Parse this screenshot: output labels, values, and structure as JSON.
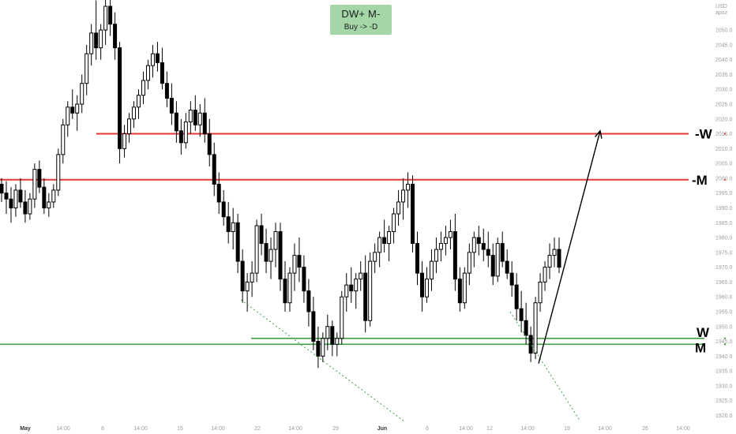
{
  "badge": {
    "title": "DW+ M-",
    "subtitle": "Buy -> -D",
    "color": "#a5d6a7"
  },
  "colors": {
    "candle": "#000000",
    "resistance": "#e53935",
    "support": "#43a047",
    "wick": "#000000",
    "axis_text": "#9e9e9e",
    "projection": "#000000"
  },
  "chart_data": {
    "type": "candlestick",
    "currency": "USD",
    "axis_unit": "apoz",
    "ylim": [
      1918,
      2058
    ],
    "y_ticks": [
      2050.0,
      2045.0,
      2040.0,
      2035.0,
      2030.0,
      2025.0,
      2020.0,
      2015.0,
      2010.0,
      2005.0,
      2000.0,
      1995.0,
      1990.0,
      1985.0,
      1980.0,
      1975.0,
      1970.0,
      1965.0,
      1960.0,
      1955.0,
      1950.0,
      1945.0,
      1940.0,
      1935.0,
      1930.0,
      1925.0,
      1920.0
    ],
    "x_ticks": [
      "May",
      "14:00",
      "8",
      "14:00",
      "15",
      "14:00",
      "22",
      "14:00",
      "29",
      "Jun",
      "6",
      "14:00",
      "12",
      "14:00",
      "19",
      "14:00",
      "26",
      "14:00"
    ],
    "levels": [
      {
        "label": "-W",
        "value": 2015.0,
        "kind": "resistance"
      },
      {
        "label": "-M",
        "value": 1999.5,
        "kind": "resistance"
      },
      {
        "label": "W",
        "value": 1946.0,
        "kind": "support"
      },
      {
        "label": "M",
        "value": 1944.0,
        "kind": "support"
      }
    ],
    "projection": {
      "from": 1937.5,
      "to": 2016.0
    },
    "grid": false,
    "series": [
      {
        "values": [
          [
            1998,
            2000,
            1992,
            1995
          ],
          [
            1995,
            1999,
            1988,
            1993
          ],
          [
            1993,
            1997,
            1985,
            1990
          ],
          [
            1990,
            1998,
            1987,
            1996
          ],
          [
            1996,
            2000,
            1990,
            1992
          ],
          [
            1992,
            1996,
            1985,
            1988
          ],
          [
            1988,
            1995,
            1986,
            1993
          ],
          [
            1993,
            2005,
            1990,
            2003
          ],
          [
            2003,
            2006,
            1995,
            1997
          ],
          [
            1997,
            2000,
            1988,
            1990
          ],
          [
            1990,
            1995,
            1987,
            1992
          ],
          [
            1992,
            1998,
            1990,
            1996
          ],
          [
            1996,
            2010,
            1994,
            2008
          ],
          [
            2008,
            2020,
            2005,
            2018
          ],
          [
            2018,
            2026,
            2014,
            2024
          ],
          [
            2024,
            2030,
            2020,
            2022
          ],
          [
            2022,
            2028,
            2016,
            2025
          ],
          [
            2025,
            2035,
            2022,
            2032
          ],
          [
            2032,
            2045,
            2028,
            2042
          ],
          [
            2042,
            2052,
            2038,
            2049
          ],
          [
            2049,
            2060,
            2040,
            2044
          ],
          [
            2044,
            2052,
            2040,
            2050
          ],
          [
            2050,
            2062,
            2045,
            2058
          ],
          [
            2058,
            2062,
            2048,
            2052
          ],
          [
            2052,
            2056,
            2040,
            2044
          ],
          [
            2044,
            2046,
            2005,
            2010
          ],
          [
            2010,
            2018,
            2007,
            2015
          ],
          [
            2015,
            2022,
            2012,
            2020
          ],
          [
            2020,
            2026,
            2017,
            2024
          ],
          [
            2024,
            2030,
            2020,
            2028
          ],
          [
            2028,
            2036,
            2025,
            2033
          ],
          [
            2033,
            2040,
            2030,
            2038
          ],
          [
            2038,
            2045,
            2034,
            2042
          ],
          [
            2042,
            2046,
            2036,
            2039
          ],
          [
            2039,
            2044,
            2030,
            2032
          ],
          [
            2032,
            2036,
            2024,
            2027
          ],
          [
            2027,
            2032,
            2018,
            2022
          ],
          [
            2022,
            2026,
            2012,
            2016
          ],
          [
            2016,
            2020,
            2008,
            2012
          ],
          [
            2012,
            2022,
            2010,
            2019
          ],
          [
            2019,
            2026,
            2015,
            2023
          ],
          [
            2023,
            2028,
            2016,
            2018
          ],
          [
            2018,
            2025,
            2014,
            2022
          ],
          [
            2022,
            2027,
            2012,
            2015
          ],
          [
            2015,
            2020,
            2004,
            2008
          ],
          [
            2008,
            2012,
            1994,
            1998
          ],
          [
            1998,
            2002,
            1988,
            1992
          ],
          [
            1992,
            1996,
            1984,
            1987
          ],
          [
            1987,
            1992,
            1978,
            1982
          ],
          [
            1982,
            1990,
            1976,
            1985
          ],
          [
            1985,
            1988,
            1968,
            1972
          ],
          [
            1972,
            1976,
            1958,
            1962
          ],
          [
            1962,
            1968,
            1955,
            1965
          ],
          [
            1965,
            1972,
            1960,
            1968
          ],
          [
            1968,
            1986,
            1965,
            1984
          ],
          [
            1984,
            1988,
            1974,
            1978
          ],
          [
            1978,
            1983,
            1968,
            1972
          ],
          [
            1972,
            1980,
            1966,
            1976
          ],
          [
            1976,
            1985,
            1970,
            1982
          ],
          [
            1982,
            1985,
            1962,
            1966
          ],
          [
            1966,
            1972,
            1955,
            1958
          ],
          [
            1958,
            1970,
            1955,
            1968
          ],
          [
            1968,
            1978,
            1962,
            1974
          ],
          [
            1974,
            1980,
            1965,
            1970
          ],
          [
            1970,
            1974,
            1958,
            1962
          ],
          [
            1962,
            1966,
            1950,
            1955
          ],
          [
            1955,
            1960,
            1942,
            1945
          ],
          [
            1945,
            1950,
            1936,
            1940
          ],
          [
            1940,
            1948,
            1938,
            1946
          ],
          [
            1946,
            1954,
            1942,
            1950
          ],
          [
            1950,
            1952,
            1940,
            1944
          ],
          [
            1944,
            1948,
            1940,
            1946
          ],
          [
            1946,
            1962,
            1944,
            1960
          ],
          [
            1960,
            1968,
            1955,
            1964
          ],
          [
            1964,
            1970,
            1958,
            1962
          ],
          [
            1962,
            1968,
            1956,
            1966
          ],
          [
            1966,
            1972,
            1962,
            1968
          ],
          [
            1968,
            1974,
            1948,
            1952
          ],
          [
            1952,
            1975,
            1950,
            1972
          ],
          [
            1972,
            1978,
            1968,
            1975
          ],
          [
            1975,
            1982,
            1970,
            1980
          ],
          [
            1980,
            1986,
            1975,
            1978
          ],
          [
            1978,
            1984,
            1972,
            1982
          ],
          [
            1982,
            1990,
            1978,
            1988
          ],
          [
            1988,
            1996,
            1984,
            1992
          ],
          [
            1992,
            2000,
            1986,
            1996
          ],
          [
            1996,
            2002,
            1990,
            1998
          ],
          [
            1998,
            2001,
            1975,
            1978
          ],
          [
            1978,
            1982,
            1964,
            1968
          ],
          [
            1968,
            1972,
            1955,
            1960
          ],
          [
            1960,
            1970,
            1958,
            1966
          ],
          [
            1966,
            1976,
            1962,
            1972
          ],
          [
            1972,
            1980,
            1968,
            1976
          ],
          [
            1976,
            1982,
            1972,
            1978
          ],
          [
            1978,
            1984,
            1974,
            1980
          ],
          [
            1980,
            1986,
            1976,
            1982
          ],
          [
            1982,
            1988,
            1962,
            1966
          ],
          [
            1966,
            1970,
            1955,
            1958
          ],
          [
            1958,
            1970,
            1956,
            1968
          ],
          [
            1968,
            1978,
            1964,
            1975
          ],
          [
            1975,
            1982,
            1970,
            1980
          ],
          [
            1980,
            1984,
            1974,
            1978
          ],
          [
            1978,
            1983,
            1972,
            1976
          ],
          [
            1976,
            1982,
            1970,
            1974
          ],
          [
            1974,
            1978,
            1964,
            1967
          ],
          [
            1967,
            1980,
            1965,
            1978
          ],
          [
            1978,
            1982,
            1970,
            1972
          ],
          [
            1972,
            1976,
            1966,
            1968
          ],
          [
            1968,
            1972,
            1960,
            1964
          ],
          [
            1964,
            1968,
            1952,
            1956
          ],
          [
            1956,
            1962,
            1948,
            1952
          ],
          [
            1952,
            1958,
            1944,
            1947
          ],
          [
            1947,
            1950,
            1938,
            1941
          ],
          [
            1941,
            1960,
            1939,
            1958
          ],
          [
            1958,
            1968,
            1955,
            1965
          ],
          [
            1965,
            1972,
            1962,
            1970
          ],
          [
            1970,
            1978,
            1966,
            1974
          ],
          [
            1974,
            1980,
            1970,
            1976
          ],
          [
            1976,
            1980,
            1968,
            1970
          ]
        ]
      }
    ]
  }
}
